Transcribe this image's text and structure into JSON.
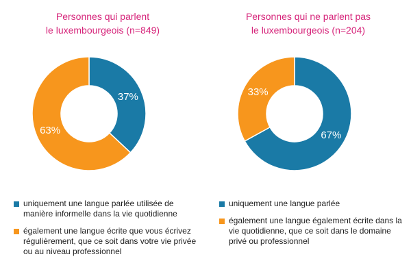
{
  "colors": {
    "blue": "#1a7aa6",
    "orange": "#f7961d",
    "title": "#d6247a"
  },
  "chart_data": [
    {
      "type": "pie",
      "title": [
        "Personnes qui parlent",
        "le luxembourgeois (n=849)"
      ],
      "slices": [
        {
          "label": "uniquement une langue parlée utilisée de manière informelle dans la vie quotidienne",
          "value": 37,
          "display": "37%",
          "color": "#1a7aa6"
        },
        {
          "label": "également une langue écrite que vous écrivez régulièrement, que ce soit dans votre vie privée ou au niveau professionnel",
          "value": 63,
          "display": "63%",
          "color": "#f7961d"
        }
      ]
    },
    {
      "type": "pie",
      "title": [
        "Personnes qui ne parlent pas",
        "le luxembourgeois (n=204)"
      ],
      "slices": [
        {
          "label": "uniquement une langue parlée",
          "value": 67,
          "display": "67%",
          "color": "#1a7aa6"
        },
        {
          "label": "également une langue également écrite dans la vie quotidienne, que ce soit dans le domaine privé ou professionnel",
          "value": 33,
          "display": "33%",
          "color": "#f7961d"
        }
      ]
    }
  ]
}
